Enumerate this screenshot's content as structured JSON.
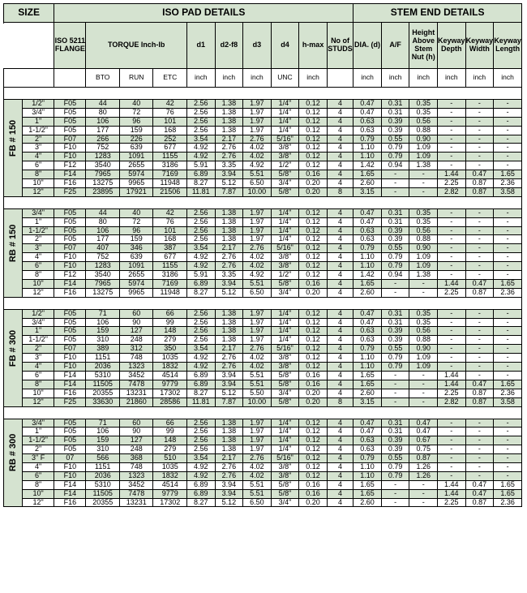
{
  "headers": {
    "size": "SIZE",
    "iso_pad": "ISO PAD DETAILS",
    "stem_end": "STEM END DETAILS",
    "iso_flange": "ISO 5211 FLANGE",
    "torque": "TORQUE Inch-lb",
    "d1": "d1",
    "d2": "d2-f8",
    "d3": "d3",
    "d4": "d4",
    "hmax": "h-max",
    "studs": "No of STUDS",
    "dia": "DIA. (d)",
    "af": "A/F",
    "height": "Height Above Stem Nut (h)",
    "kdepth": "Keyway Depth",
    "kwidth": "Keyway Width",
    "klength": "Keyway Length",
    "bto": "BTO",
    "run": "RUN",
    "etc": "ETC",
    "inch": "inch",
    "unc": "UNC"
  },
  "groups": [
    {
      "label": "FB # 150",
      "rows": [
        [
          "1/2\"",
          "F05",
          "44",
          "40",
          "42",
          "2.56",
          "1.38",
          "1.97",
          "1/4\"",
          "0.12",
          "4",
          "0.47",
          "0.31",
          "0.35",
          "-",
          "-",
          "-"
        ],
        [
          "3/4\"",
          "F05",
          "80",
          "72",
          "76",
          "2.56",
          "1.38",
          "1.97",
          "1/4\"",
          "0.12",
          "4",
          "0.47",
          "0.31",
          "0.35",
          "-",
          "-",
          "-"
        ],
        [
          "1\"",
          "F05",
          "106",
          "96",
          "101",
          "2.56",
          "1.38",
          "1.97",
          "1/4\"",
          "0.12",
          "4",
          "0.63",
          "0.39",
          "0.56",
          "-",
          "-",
          "-"
        ],
        [
          "1-1/2\"",
          "F05",
          "177",
          "159",
          "168",
          "2.56",
          "1.38",
          "1.97",
          "1/4\"",
          "0.12",
          "4",
          "0.63",
          "0.39",
          "0.88",
          "-",
          "-",
          "-"
        ],
        [
          "2\"",
          "F07",
          "266",
          "226",
          "252",
          "3.54",
          "2.17",
          "2.76",
          "5/16\"",
          "0.12",
          "4",
          "0.79",
          "0.55",
          "0.90",
          "-",
          "-",
          "-"
        ],
        [
          "3\"",
          "F10",
          "752",
          "639",
          "677",
          "4.92",
          "2.76",
          "4.02",
          "3/8\"",
          "0.12",
          "4",
          "1.10",
          "0.79",
          "1.09",
          "-",
          "-",
          "-"
        ],
        [
          "4\"",
          "F10",
          "1283",
          "1091",
          "1155",
          "4.92",
          "2.76",
          "4.02",
          "3/8\"",
          "0.12",
          "4",
          "1.10",
          "0.79",
          "1.09",
          "-",
          "-",
          "-"
        ],
        [
          "6\"",
          "F12",
          "3540",
          "2655",
          "3186",
          "5.91",
          "3.35",
          "4.92",
          "1/2\"",
          "0.12",
          "4",
          "1.42",
          "0.94",
          "1.38",
          "-",
          "-",
          "-"
        ],
        [
          "8\"",
          "F14",
          "7965",
          "5974",
          "7169",
          "6.89",
          "3.94",
          "5.51",
          "5/8\"",
          "0.16",
          "4",
          "1.65",
          "-",
          "-",
          "1.44",
          "0.47",
          "1.65"
        ],
        [
          "10\"",
          "F16",
          "13275",
          "9965",
          "11948",
          "8.27",
          "5.12",
          "6.50",
          "3/4\"",
          "0.20",
          "4",
          "2.60",
          "-",
          "-",
          "2.25",
          "0.87",
          "2.36"
        ],
        [
          "12\"",
          "F25",
          "23895",
          "17921",
          "21506",
          "11.81",
          "7.87",
          "10.00",
          "5/8\"",
          "0.20",
          "8",
          "3.15",
          "-",
          "-",
          "2.82",
          "0.87",
          "3.58"
        ]
      ]
    },
    {
      "label": "RB # 150",
      "rows": [
        [
          "3/4\"",
          "F05",
          "44",
          "40",
          "42",
          "2.56",
          "1.38",
          "1.97",
          "1/4\"",
          "0.12",
          "4",
          "0.47",
          "0.31",
          "0.35",
          "-",
          "-",
          "-"
        ],
        [
          "1\"",
          "F05",
          "80",
          "72",
          "76",
          "2.56",
          "1.38",
          "1.97",
          "1/4\"",
          "0.12",
          "4",
          "0.47",
          "0.31",
          "0.35",
          "-",
          "-",
          "-"
        ],
        [
          "1-1/2\"",
          "F05",
          "106",
          "96",
          "101",
          "2.56",
          "1.38",
          "1.97",
          "1/4\"",
          "0.12",
          "4",
          "0.63",
          "0.39",
          "0.56",
          "-",
          "-",
          "-"
        ],
        [
          "2\"",
          "F05",
          "177",
          "159",
          "168",
          "2.56",
          "1.38",
          "1.97",
          "1/4\"",
          "0.12",
          "4",
          "0.63",
          "0.39",
          "0.88",
          "-",
          "-",
          "-"
        ],
        [
          "3\"",
          "F07",
          "407",
          "346",
          "387",
          "3.54",
          "2.17",
          "2.76",
          "5/16\"",
          "0.12",
          "4",
          "0.79",
          "0.55",
          "0.90",
          "-",
          "-",
          "-"
        ],
        [
          "4\"",
          "F10",
          "752",
          "639",
          "677",
          "4.92",
          "2.76",
          "4.02",
          "3/8\"",
          "0.12",
          "4",
          "1.10",
          "0.79",
          "1.09",
          "-",
          "-",
          "-"
        ],
        [
          "6\"",
          "F10",
          "1283",
          "1091",
          "1155",
          "4.92",
          "2.76",
          "4.02",
          "3/8\"",
          "0.12",
          "4",
          "1.10",
          "0.79",
          "1.09",
          "-",
          "-",
          "-"
        ],
        [
          "8\"",
          "F12",
          "3540",
          "2655",
          "3186",
          "5.91",
          "3.35",
          "4.92",
          "1/2\"",
          "0.12",
          "4",
          "1.42",
          "0.94",
          "1.38",
          "-",
          "-",
          "-"
        ],
        [
          "10\"",
          "F14",
          "7965",
          "5974",
          "7169",
          "6.89",
          "3.94",
          "5.51",
          "5/8\"",
          "0.16",
          "4",
          "1.65",
          "-",
          "-",
          "1.44",
          "0.47",
          "1.65"
        ],
        [
          "12\"",
          "F16",
          "13275",
          "9965",
          "11948",
          "8.27",
          "5.12",
          "6.50",
          "3/4\"",
          "0.20",
          "4",
          "2.60",
          "-",
          "-",
          "2.25",
          "0.87",
          "2.36"
        ]
      ]
    },
    {
      "label": "FB # 300",
      "rows": [
        [
          "1/2\"",
          "F05",
          "71",
          "60",
          "66",
          "2.56",
          "1.38",
          "1.97",
          "1/4\"",
          "0.12",
          "4",
          "0.47",
          "0.31",
          "0.35",
          "-",
          "-",
          "-"
        ],
        [
          "3/4\"",
          "F05",
          "106",
          "90",
          "99",
          "2.56",
          "1.38",
          "1.97",
          "1/4\"",
          "0.12",
          "4",
          "0.47",
          "0.31",
          "0.35",
          "-",
          "-",
          "-"
        ],
        [
          "1\"",
          "F05",
          "159",
          "127",
          "148",
          "2.56",
          "1.38",
          "1.97",
          "1/4\"",
          "0.12",
          "4",
          "0.63",
          "0.39",
          "0.56",
          "-",
          "-",
          "-"
        ],
        [
          "1-1/2\"",
          "F05",
          "310",
          "248",
          "279",
          "2.56",
          "1.38",
          "1.97",
          "1/4\"",
          "0.12",
          "4",
          "0.63",
          "0.39",
          "0.88",
          "-",
          "-",
          "-"
        ],
        [
          "2\"",
          "F07",
          "389",
          "312",
          "350",
          "3.54",
          "2.17",
          "2.76",
          "5/16\"",
          "0.12",
          "4",
          "0.79",
          "0.55",
          "0.90",
          "-",
          "-",
          "-"
        ],
        [
          "3\"",
          "F10",
          "1151",
          "748",
          "1035",
          "4.92",
          "2.76",
          "4.02",
          "3/8\"",
          "0.12",
          "4",
          "1.10",
          "0.79",
          "1.09",
          "-",
          "-",
          "-"
        ],
        [
          "4\"",
          "F10",
          "2036",
          "1323",
          "1832",
          "4.92",
          "2.76",
          "4.02",
          "3/8\"",
          "0.12",
          "4",
          "1.10",
          "0.79",
          "1.09",
          "-",
          "-",
          "-"
        ],
        [
          "6\"",
          "F14",
          "5310",
          "3452",
          "4514",
          "6.89",
          "3.94",
          "5.51",
          "5/8\"",
          "0.16",
          "4",
          "1.65",
          "-",
          "-",
          "1.44",
          "-",
          "-"
        ],
        [
          "8\"",
          "F14",
          "11505",
          "7478",
          "9779",
          "6.89",
          "3.94",
          "5.51",
          "5/8\"",
          "0.16",
          "4",
          "1.65",
          "-",
          "-",
          "1.44",
          "0.47",
          "1.65"
        ],
        [
          "10\"",
          "F16",
          "20355",
          "13231",
          "17302",
          "8.27",
          "5.12",
          "5.50",
          "3/4\"",
          "0.20",
          "4",
          "2.60",
          "-",
          "-",
          "2.25",
          "0.87",
          "2.36"
        ],
        [
          "12\"",
          "F25",
          "33630",
          "21860",
          "28586",
          "11.81",
          "7.87",
          "10.00",
          "5/8\"",
          "0.20",
          "8",
          "3.15",
          "-",
          "-",
          "2.82",
          "0.87",
          "3.58"
        ]
      ]
    },
    {
      "label": "RB # 300",
      "rows": [
        [
          "3/4\"",
          "F05",
          "71",
          "60",
          "66",
          "2.56",
          "1.38",
          "1.97",
          "1/4\"",
          "0.12",
          "4",
          "0.47",
          "0.31",
          "0.47",
          "-",
          "-",
          "-"
        ],
        [
          "1\"",
          "F05",
          "106",
          "90",
          "99",
          "2.56",
          "1.38",
          "1.97",
          "1/4\"",
          "0.12",
          "4",
          "0.47",
          "0.31",
          "0.47",
          "-",
          "-",
          "-"
        ],
        [
          "1-1/2\"",
          "F05",
          "159",
          "127",
          "148",
          "2.56",
          "1.38",
          "1.97",
          "1/4\"",
          "0.12",
          "4",
          "0.63",
          "0.39",
          "0.67",
          "-",
          "-",
          "-"
        ],
        [
          "2\"",
          "F05",
          "310",
          "248",
          "279",
          "2.56",
          "1.38",
          "1.97",
          "1/4\"",
          "0.12",
          "4",
          "0.63",
          "0.39",
          "0.75",
          "-",
          "-",
          "-"
        ],
        [
          "3\" F",
          "07",
          "566",
          "368",
          "510",
          "3.54",
          "2.17",
          "2.76",
          "5/16\"",
          "0.12",
          "4",
          "0.79",
          "0.55",
          "0.87",
          "-",
          "-",
          "-"
        ],
        [
          "4\"",
          "F10",
          "1151",
          "748",
          "1035",
          "4.92",
          "2.76",
          "4.02",
          "3/8\"",
          "0.12",
          "4",
          "1.10",
          "0.79",
          "1.26",
          "-",
          "-",
          "-"
        ],
        [
          "6\"",
          "F10",
          "2036",
          "1323",
          "1832",
          "4.92",
          "2.76",
          "4.02",
          "3/8\"",
          "0.12",
          "4",
          "1.10",
          "0.79",
          "1.26",
          "-",
          "-",
          "-"
        ],
        [
          "8\"",
          "F14",
          "5310",
          "3452",
          "4514",
          "6.89",
          "3.94",
          "5.51",
          "5/8\"",
          "0.16",
          "4",
          "1.65",
          "-",
          "-",
          "1.44",
          "0.47",
          "1.65"
        ],
        [
          "10\"",
          "F14",
          "11505",
          "7478",
          "9779",
          "6.89",
          "3.94",
          "5.51",
          "5/8\"",
          "0.16",
          "4",
          "1.65",
          "-",
          "-",
          "1.44",
          "0.47",
          "1.65"
        ],
        [
          "12\"",
          "F16",
          "20355",
          "13231",
          "17302",
          "8.27",
          "5.12",
          "6.50",
          "3/4\"",
          "0.20",
          "4",
          "2.60",
          "-",
          "-",
          "2.25",
          "0.87",
          "2.36"
        ]
      ]
    }
  ]
}
